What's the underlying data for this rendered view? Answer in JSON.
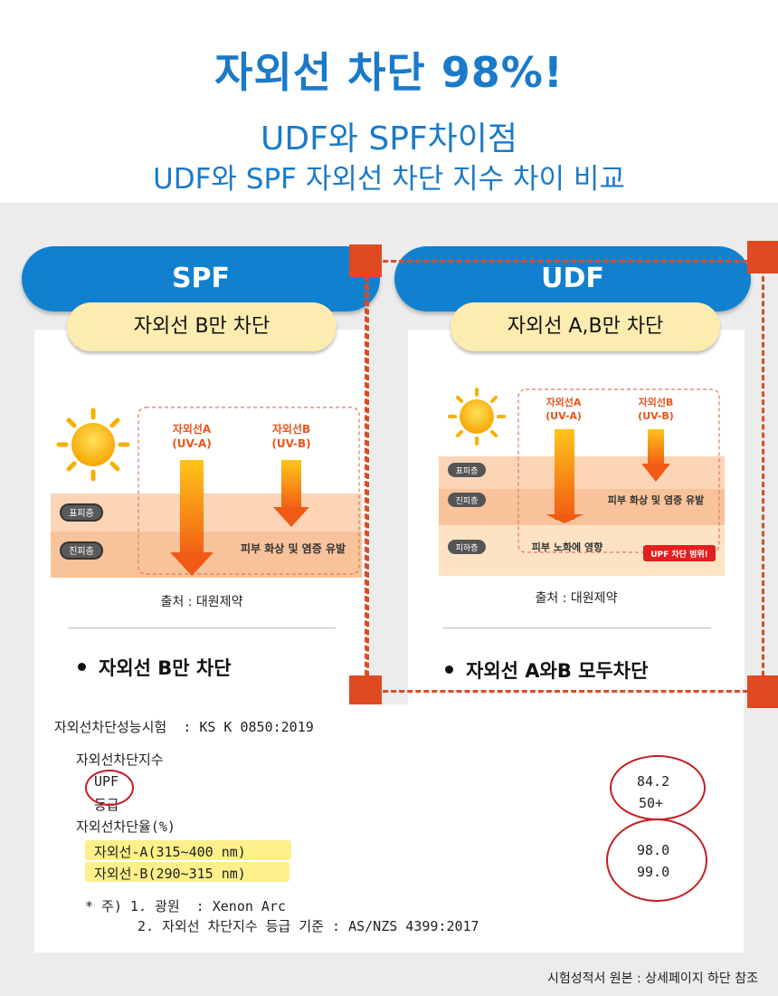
{
  "header": {
    "title": "자외선 차단 98%!",
    "subtitle1": "UDF와 SPF차이점",
    "subtitle2": "UDF와 SPF 자외선 차단 지수 차이 비교"
  },
  "spf": {
    "pill_label": "SPF",
    "yellow_label": "자외선 B만 차단",
    "diagram": {
      "uva_label": "자외선A",
      "uva_sub": "(UV-A)",
      "uvb_label": "자외선B",
      "uvb_sub": "(UV-B)",
      "layer1": "표피층",
      "layer2": "진피층",
      "effect": "피부 화상 및 염증 유발"
    },
    "source": "출처 : 대원제약",
    "bullet": "자외선 B만 차단"
  },
  "udf": {
    "pill_label": "UDF",
    "yellow_label": "자외선 A,B만 차단",
    "diagram": {
      "uva_label": "자외선A",
      "uva_sub": "(UV-A)",
      "uvb_label": "자외선B",
      "uvb_sub": "(UV-B)",
      "layer1": "표피층",
      "layer2": "진피층",
      "layer3": "피하층",
      "effect_b": "피부 화상 및 염증 유발",
      "effect_a": "피부 노화에 영향",
      "badge": "UPF 차단 범위!"
    },
    "source": "출처 : 대원제약",
    "bullet": "자외선 A와B 모두차단"
  },
  "report": {
    "test_title": "자외선차단성능시험  : KS K 0850:2019",
    "index_header": "자외선차단지수",
    "upf_label": "UPF",
    "upf_value": "84.2",
    "grade_label": "등급",
    "grade_value": "50+",
    "rate_header": "자외선차단율(%)",
    "uva_label": "자외선-A(315~400 nm)",
    "uva_value": "98.0",
    "uvb_label": "자외선-B(290~315 nm)",
    "uvb_value": "99.0",
    "note1": "* 주) 1. 광원  : Xenon Arc",
    "note2": "2. 자외선 차단지수 등급 기준 : AS/NZS 4399:2017"
  },
  "footnote": "시험성적서 원본 : 상세페이지 하단 참조",
  "colors": {
    "brand_blue": "#1181cf",
    "title_blue": "#1a7ac9",
    "accent_red": "#de4a22",
    "pill_yellow": "#fdecaf",
    "highlight": "#fdf08a"
  }
}
